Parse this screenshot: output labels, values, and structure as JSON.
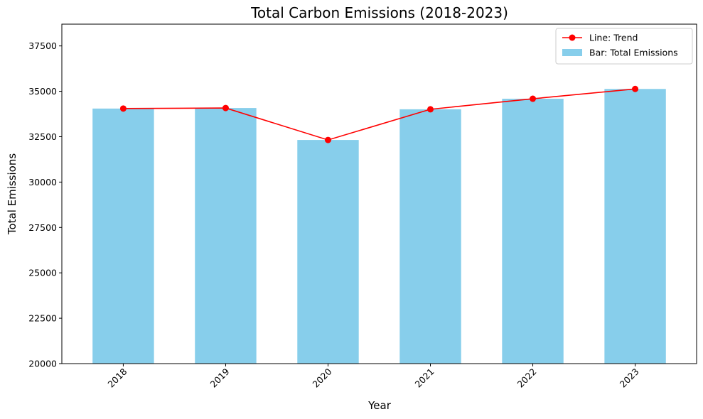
{
  "chart_data": {
    "type": "bar",
    "title": "Total Carbon Emissions (2018-2023)",
    "xlabel": "Year",
    "ylabel": "Total Emissions",
    "categories": [
      "2018",
      "2019",
      "2020",
      "2021",
      "2022",
      "2023"
    ],
    "ylim": [
      20000,
      38700
    ],
    "yticks": [
      20000,
      22500,
      25000,
      27500,
      30000,
      32500,
      35000,
      37500
    ],
    "series": [
      {
        "name": "Bar: Total Emissions",
        "kind": "bar",
        "color": "#87CEEB",
        "values": [
          34050,
          34080,
          32320,
          34010,
          34590,
          35130
        ]
      },
      {
        "name": "Line: Trend",
        "kind": "line",
        "color": "#FF0000",
        "values": [
          34050,
          34080,
          32320,
          34010,
          34590,
          35130
        ]
      }
    ],
    "legend": {
      "position": "top-right",
      "entries": [
        "Line: Trend",
        "Bar: Total Emissions"
      ]
    },
    "grid": false
  }
}
